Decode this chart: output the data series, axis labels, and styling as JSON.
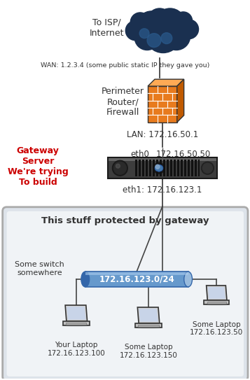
{
  "bg_color": "#ffffff",
  "cloud_text": "To ISP/\nInternet",
  "wan_text": "WAN: 1.2.3.4 (some public static IP they gave you)",
  "firewall_label": "Perimeter\nRouter/\nFirewall",
  "lan_text": "LAN: 172.16.50.1",
  "eth0_label": "eth0",
  "eth0_ip": "172.16.50.50",
  "server_label_color": "#cc0000",
  "server_label": "Gateway\nServer\nWe're trying\nTo build",
  "eth1_text": "eth1: 172.16.123.1",
  "protected_box_text": "This stuff protected by gateway",
  "switch_text": "Some switch\nsomewhere",
  "network_label": "172.16.123.0/24",
  "laptop1_label": "Your Laptop\n172.16.123.100",
  "laptop2_label": "Some Laptop\n172.16.123.150",
  "laptop3_label": "Some Laptop\n172.16.123.50",
  "firewall_color_body": "#E87B1E",
  "firewall_color_side": "#C05A00",
  "firewall_color_top": "#FFAA55",
  "network_tube_color": "#6699CC",
  "network_tube_dark": "#3366AA",
  "network_tube_light": "#99BBDD",
  "line_color": "#444444",
  "cloud_dark": "#1a3050",
  "cloud_mid": "#1e3d6e",
  "cloud_light": "#2a5a8c"
}
